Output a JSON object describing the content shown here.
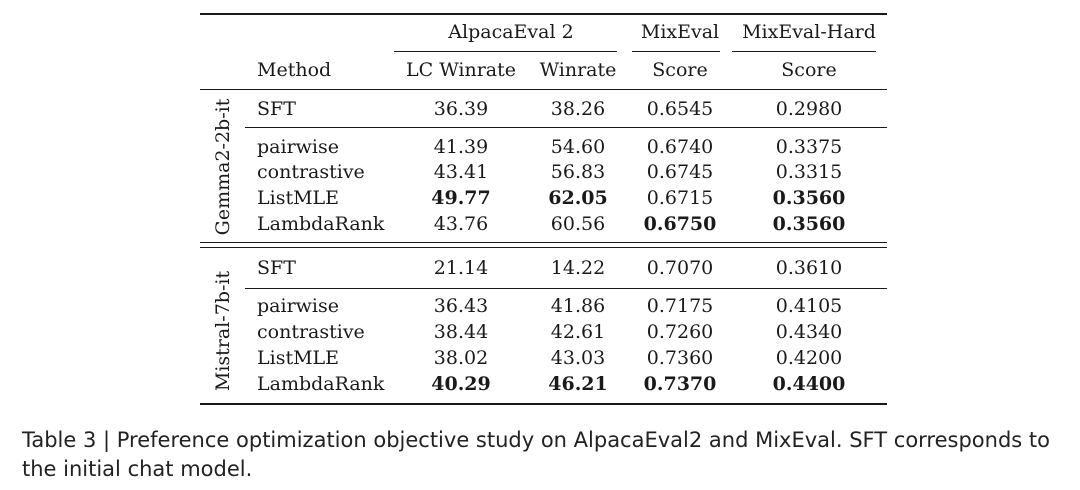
{
  "table": {
    "group_headers": [
      {
        "label": "AlpacaEval 2"
      },
      {
        "label": "MixEval"
      },
      {
        "label": "MixEval-Hard"
      }
    ],
    "column_headers": [
      "Method",
      "LC Winrate",
      "Winrate",
      "Score",
      "Score"
    ],
    "groups": [
      {
        "label": "Gemma2-2b-it",
        "rows": [
          {
            "cells": [
              "SFT",
              "36.39",
              "38.26",
              "0.6545",
              "0.2980"
            ],
            "bold": [
              false,
              false,
              false,
              false,
              false
            ]
          },
          {
            "cells": [
              "pairwise",
              "41.39",
              "54.60",
              "0.6740",
              "0.3375"
            ],
            "bold": [
              false,
              false,
              false,
              false,
              false
            ]
          },
          {
            "cells": [
              "contrastive",
              "43.41",
              "56.83",
              "0.6745",
              "0.3315"
            ],
            "bold": [
              false,
              false,
              false,
              false,
              false
            ]
          },
          {
            "cells": [
              "ListMLE",
              "49.77",
              "62.05",
              "0.6715",
              "0.3560"
            ],
            "bold": [
              false,
              true,
              true,
              false,
              true
            ]
          },
          {
            "cells": [
              "LambdaRank",
              "43.76",
              "60.56",
              "0.6750",
              "0.3560"
            ],
            "bold": [
              false,
              false,
              false,
              true,
              true
            ]
          }
        ]
      },
      {
        "label": "Mistral-7b-it",
        "rows": [
          {
            "cells": [
              "SFT",
              "21.14",
              "14.22",
              "0.7070",
              "0.3610"
            ],
            "bold": [
              false,
              false,
              false,
              false,
              false
            ]
          },
          {
            "cells": [
              "pairwise",
              "36.43",
              "41.86",
              "0.7175",
              "0.4105"
            ],
            "bold": [
              false,
              false,
              false,
              false,
              false
            ]
          },
          {
            "cells": [
              "contrastive",
              "38.44",
              "42.61",
              "0.7260",
              "0.4340"
            ],
            "bold": [
              false,
              false,
              false,
              false,
              false
            ]
          },
          {
            "cells": [
              "ListMLE",
              "38.02",
              "43.03",
              "0.7360",
              "0.4200"
            ],
            "bold": [
              false,
              false,
              false,
              false,
              false
            ]
          },
          {
            "cells": [
              "LambdaRank",
              "40.29",
              "46.21",
              "0.7370",
              "0.4400"
            ],
            "bold": [
              false,
              true,
              true,
              true,
              true
            ]
          }
        ]
      }
    ]
  },
  "caption": "Table 3 | Preference optimization objective study on AlpacaEval2 and MixEval. SFT corresponds to the initial chat model."
}
